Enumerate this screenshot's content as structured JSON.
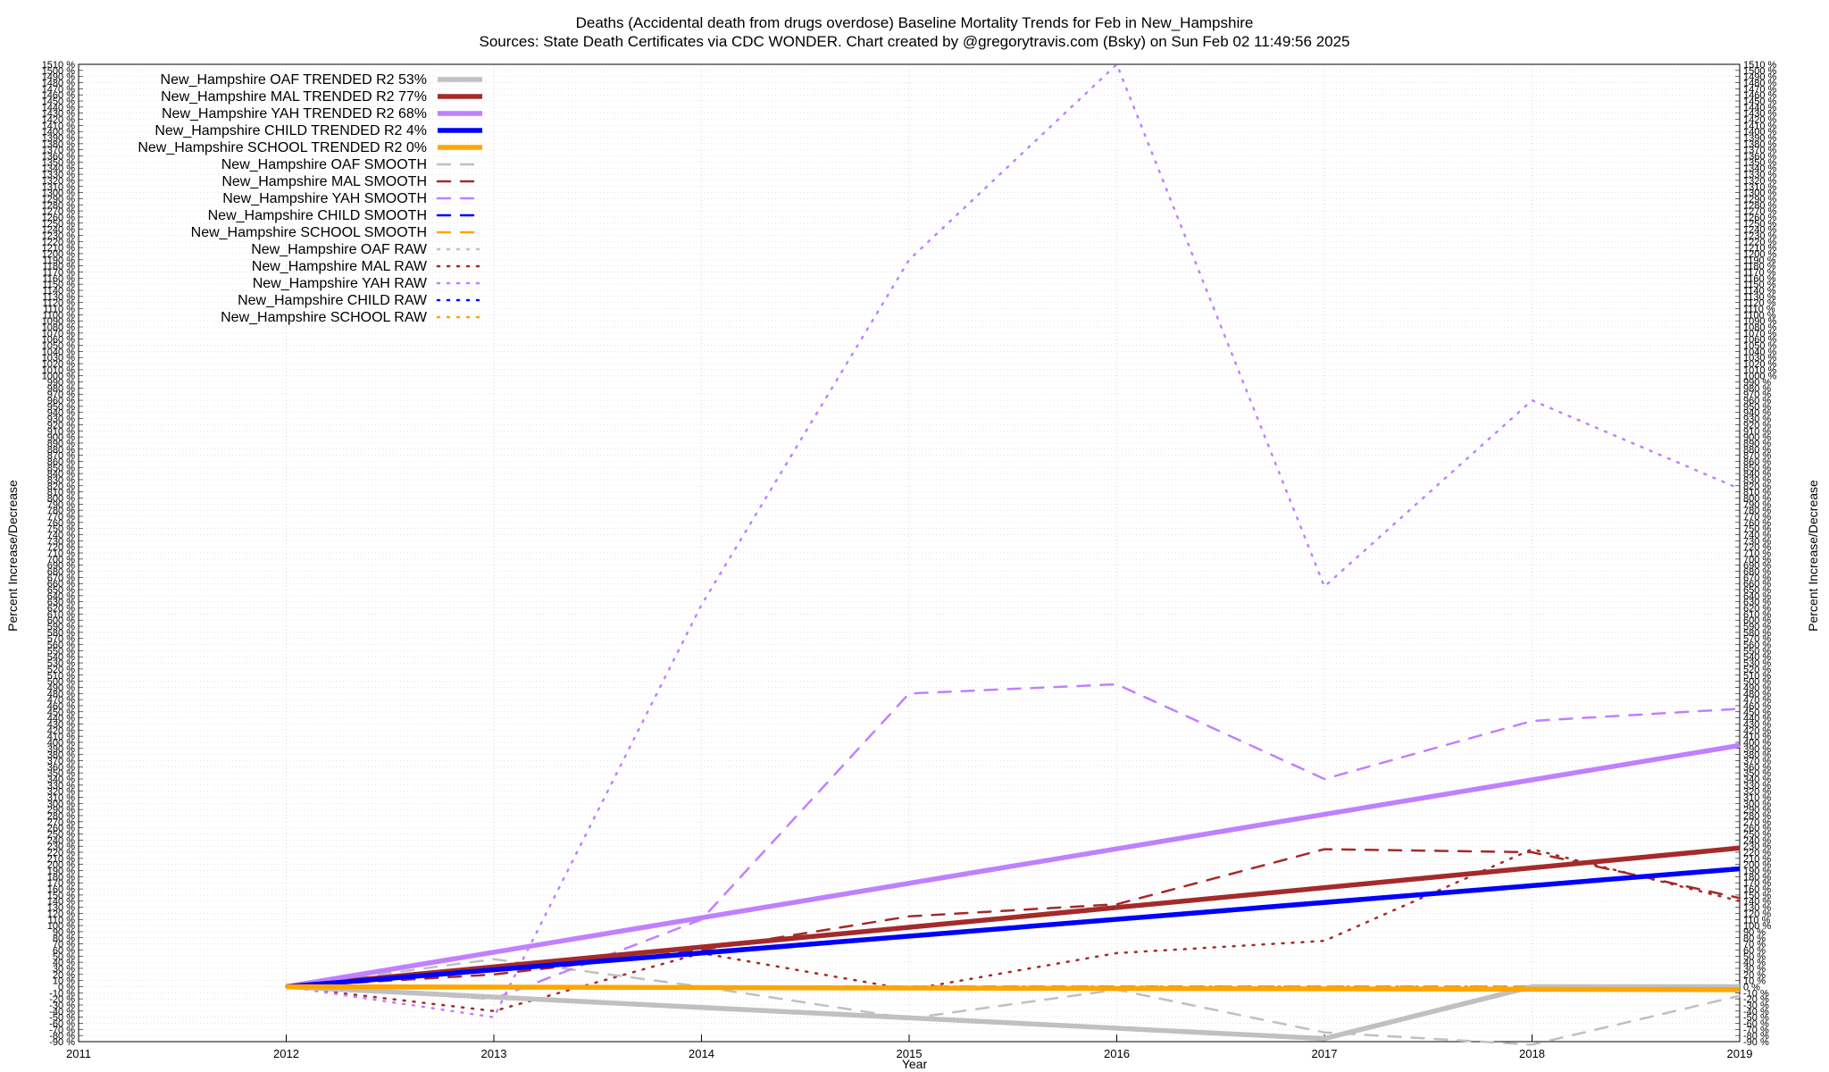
{
  "title_line1": "Deaths (Accidental death from drugs overdose)  Baseline Mortality Trends for Feb in New_Hampshire",
  "title_line2": "Sources: State Death Certificates via CDC WONDER.                Chart created by @gregorytravis.com (Bsky) on Sun Feb 02 11:49:56 2025",
  "chart_data": {
    "type": "line",
    "xlabel": "Year",
    "ylabel": "Percent Increase/Decrease",
    "ylabel_right": "Percent Increase/Decrease",
    "xlim": [
      2011,
      2019
    ],
    "ylim": [
      -90,
      1510
    ],
    "x_ticks": [
      "2011",
      "2012",
      "2013",
      "2014",
      "2015",
      "2016",
      "2017",
      "2018",
      "2019"
    ],
    "y_tick_step": 10,
    "y_tick_suffix": " %",
    "grid": true,
    "legend_position": "top-left",
    "series": [
      {
        "name": "New_Hampshire OAF TRENDED R2  53%",
        "style": "trend",
        "color": "#c0c0c0",
        "x": [
          2012,
          2017,
          2018,
          2019
        ],
        "y": [
          0,
          -85,
          0,
          0
        ]
      },
      {
        "name": "New_Hampshire MAL TRENDED R2  77%",
        "style": "trend",
        "color": "#a52a2a",
        "x": [
          2012,
          2019
        ],
        "y": [
          0,
          227
        ]
      },
      {
        "name": "New_Hampshire YAH TRENDED R2  68%",
        "style": "trend",
        "color": "#c080ff",
        "x": [
          2012,
          2019
        ],
        "y": [
          0,
          395
        ]
      },
      {
        "name": "New_Hampshire CHILD TRENDED R2  4%",
        "style": "trend",
        "color": "#0000ff",
        "x": [
          2012,
          2019
        ],
        "y": [
          0,
          193
        ]
      },
      {
        "name": "New_Hampshire SCHOOL TRENDED R2  0%",
        "style": "trend",
        "color": "#ffa500",
        "x": [
          2012,
          2019
        ],
        "y": [
          0,
          -5
        ]
      },
      {
        "name": "New_Hampshire OAF SMOOTH",
        "style": "smooth",
        "color": "#c0c0c0",
        "x": [
          2012,
          2013,
          2014,
          2015,
          2016,
          2017,
          2018,
          2019
        ],
        "y": [
          0,
          45,
          0,
          -52,
          -5,
          -75,
          -95,
          -15
        ]
      },
      {
        "name": "New_Hampshire MAL SMOOTH",
        "style": "smooth",
        "color": "#a52a2a",
        "x": [
          2012,
          2013,
          2014,
          2015,
          2016,
          2017,
          2018,
          2019
        ],
        "y": [
          0,
          20,
          60,
          115,
          135,
          225,
          220,
          145
        ]
      },
      {
        "name": "New_Hampshire YAH SMOOTH",
        "style": "smooth",
        "color": "#c080ff",
        "x": [
          2012,
          2013,
          2014,
          2015,
          2016,
          2017,
          2018,
          2019
        ],
        "y": [
          0,
          -20,
          110,
          480,
          495,
          340,
          435,
          455
        ]
      },
      {
        "name": "New_Hampshire CHILD SMOOTH",
        "style": "smooth",
        "color": "#0000ff",
        "x": [
          2012,
          2013,
          2014,
          2015,
          2016,
          2017,
          2018,
          2019
        ],
        "y": [
          0,
          0,
          0,
          0,
          0,
          0,
          0,
          0
        ]
      },
      {
        "name": "New_Hampshire SCHOOL SMOOTH",
        "style": "smooth",
        "color": "#ffa500",
        "x": [
          2012,
          2013,
          2014,
          2015,
          2016,
          2017,
          2018,
          2019
        ],
        "y": [
          0,
          0,
          0,
          0,
          0,
          0,
          0,
          0
        ]
      },
      {
        "name": "New_Hampshire OAF RAW",
        "style": "raw",
        "color": "#c0c0c0",
        "x": [
          2012,
          2013,
          2014,
          2015,
          2016,
          2017,
          2018,
          2019
        ],
        "y": [
          0,
          0,
          0,
          0,
          0,
          0,
          0,
          0
        ]
      },
      {
        "name": "New_Hampshire MAL RAW",
        "style": "raw",
        "color": "#a52a2a",
        "x": [
          2012,
          2013,
          2014,
          2015,
          2016,
          2017,
          2018,
          2019
        ],
        "y": [
          0,
          -40,
          55,
          -5,
          55,
          75,
          225,
          140
        ]
      },
      {
        "name": "New_Hampshire YAH RAW",
        "style": "raw",
        "color": "#c080ff",
        "x": [
          2012,
          2013,
          2014,
          2015,
          2016,
          2017,
          2018,
          2019
        ],
        "y": [
          0,
          -50,
          625,
          1190,
          1510,
          655,
          960,
          815
        ]
      },
      {
        "name": "New_Hampshire CHILD RAW",
        "style": "raw",
        "color": "#0000ff",
        "x": [
          2012,
          2013,
          2014,
          2015,
          2016,
          2017,
          2018,
          2019
        ],
        "y": [
          0,
          0,
          0,
          0,
          0,
          0,
          0,
          0
        ]
      },
      {
        "name": "New_Hampshire SCHOOL RAW",
        "style": "raw",
        "color": "#ffa500",
        "x": [
          2012,
          2013,
          2014,
          2015,
          2016,
          2017,
          2018,
          2019
        ],
        "y": [
          0,
          0,
          0,
          0,
          0,
          0,
          0,
          0
        ]
      }
    ]
  }
}
